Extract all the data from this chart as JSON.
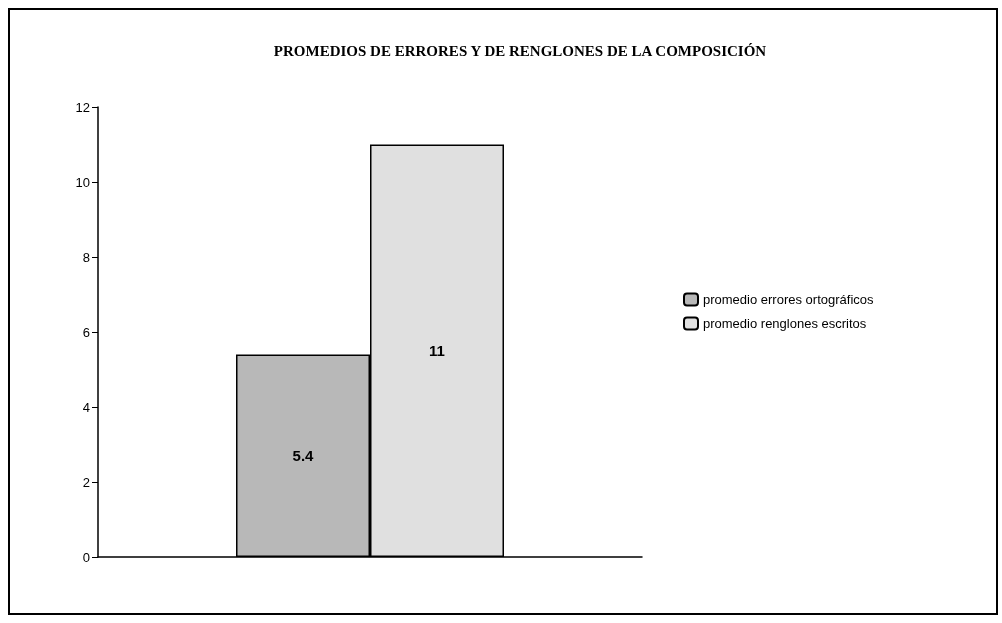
{
  "chart_data": {
    "type": "bar",
    "title": "PROMEDIOS DE ERRORES Y DE RENGLONES DE LA COMPOSICIÓN",
    "categories": [
      null
    ],
    "series": [
      {
        "name": "promedio errores ortográficos",
        "color": "#b8b8b8",
        "values": [
          5.4
        ]
      },
      {
        "name": "promedio renglones escritos",
        "color": "#e0e0e0",
        "values": [
          11
        ]
      }
    ],
    "ylim": [
      0,
      12
    ],
    "yticks": [
      0,
      2,
      4,
      6,
      8,
      10,
      12
    ],
    "grid": false,
    "legend": "right",
    "data_labels": true
  }
}
